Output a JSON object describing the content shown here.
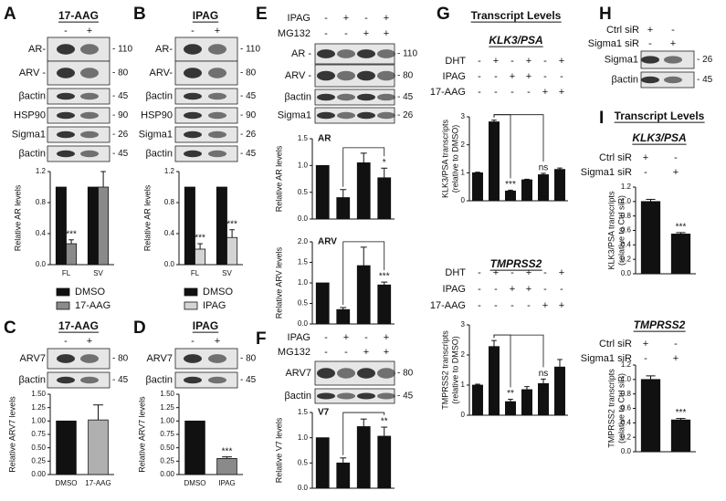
{
  "panels": [
    {
      "letter": "A",
      "title": "17-AAG",
      "conditions": [
        {
          "signs": [
            "-",
            "+"
          ]
        }
      ],
      "blot": [
        {
          "label": "AR-",
          "mw": "- 110"
        },
        {
          "label": "ARV -",
          "mw": "- 80"
        },
        {
          "label": "βactin",
          "mw": "- 45"
        },
        {
          "label": "HSP90",
          "mw": "- 90"
        },
        {
          "label": "Sigma1",
          "mw": "- 26"
        },
        {
          "label": "βactin",
          "mw": "- 45"
        }
      ]
    },
    {
      "letter": "B",
      "title": "IPAG",
      "conditions": [
        {
          "signs": [
            "-",
            "+"
          ]
        }
      ],
      "blot": [
        {
          "label": "AR-",
          "mw": "- 110"
        },
        {
          "label": "ARV-",
          "mw": "- 80"
        },
        {
          "label": "βactin",
          "mw": "- 45"
        },
        {
          "label": "HSP90",
          "mw": "- 90"
        },
        {
          "label": "Sigma1",
          "mw": "- 26"
        },
        {
          "label": "βactin",
          "mw": "- 45"
        }
      ]
    },
    {
      "letter": "C",
      "title": "17-AAG",
      "conditions": [
        {
          "signs": [
            "-",
            "+"
          ]
        }
      ],
      "blot": [
        {
          "label": "ARV7",
          "mw": "- 80"
        },
        {
          "label": "βactin",
          "mw": "- 45"
        }
      ]
    },
    {
      "letter": "D",
      "title": "IPAG",
      "conditions": [
        {
          "signs": [
            "-",
            "+"
          ]
        }
      ],
      "blot": [
        {
          "label": "ARV7",
          "mw": "- 80"
        },
        {
          "label": "βactin",
          "mw": "- 45"
        }
      ]
    },
    {
      "letter": "E",
      "conditions": [
        {
          "name": "IPAG",
          "signs": [
            "-",
            "+",
            "-",
            "+"
          ]
        },
        {
          "name": "MG132",
          "signs": [
            "-",
            "-",
            "+",
            "+"
          ]
        }
      ],
      "blot": [
        {
          "label": "AR -",
          "mw": "- 110"
        },
        {
          "label": "ARV -",
          "mw": "- 80"
        },
        {
          "label": "βactin",
          "mw": "- 45"
        },
        {
          "label": "Sigma1",
          "mw": "- 26"
        }
      ]
    },
    {
      "letter": "F",
      "conditions": [
        {
          "name": "IPAG",
          "signs": [
            "-",
            "+",
            "-",
            "+"
          ]
        },
        {
          "name": "MG132",
          "signs": [
            "-",
            "-",
            "+",
            "+"
          ]
        }
      ],
      "blot": [
        {
          "label": "ARV7",
          "mw": "- 80"
        },
        {
          "label": "βactin",
          "mw": "- 45"
        }
      ]
    },
    {
      "letter": "G",
      "title": "Transcript Levels",
      "sections": [
        {
          "subtitle": "KLK3/PSA",
          "conditions": [
            {
              "name": "DHT",
              "signs": [
                "-",
                "+",
                "-",
                "+",
                "-",
                "+"
              ]
            },
            {
              "name": "IPAG",
              "signs": [
                "-",
                "-",
                "+",
                "+",
                "-",
                "-"
              ]
            },
            {
              "name": "17-AAG",
              "signs": [
                "-",
                "-",
                "-",
                "-",
                "+",
                "+"
              ]
            }
          ]
        },
        {
          "subtitle": "TMPRSS2",
          "conditions": [
            {
              "name": "DHT",
              "signs": [
                "-",
                "+",
                "-",
                "+",
                "-",
                "+"
              ]
            },
            {
              "name": "IPAG",
              "signs": [
                "-",
                "-",
                "+",
                "+",
                "-",
                "-"
              ]
            },
            {
              "name": "17-AAG",
              "signs": [
                "-",
                "-",
                "-",
                "-",
                "+",
                "+"
              ]
            }
          ]
        }
      ]
    },
    {
      "letter": "H",
      "conditions": [
        {
          "name": "Ctrl siR",
          "signs": [
            "+",
            "-"
          ]
        },
        {
          "name": "Sigma1 siR",
          "signs": [
            "-",
            "+"
          ]
        }
      ],
      "blot": [
        {
          "label": "Sigma1",
          "mw": "- 26"
        },
        {
          "label": "βactin",
          "mw": "- 45"
        }
      ]
    },
    {
      "letter": "I",
      "title": "Transcript Levels",
      "sections": [
        {
          "subtitle": "KLK3/PSA",
          "conditions": [
            {
              "name": "Ctrl siR",
              "signs": [
                "+",
                "-"
              ]
            },
            {
              "name": "Sigma1 siR",
              "signs": [
                "-",
                "+"
              ]
            }
          ]
        },
        {
          "subtitle": "TMPRSS2",
          "conditions": [
            {
              "name": "Ctrl siR",
              "signs": [
                "+",
                "-"
              ]
            },
            {
              "name": "Sigma1 siR",
              "signs": [
                "-",
                "+"
              ]
            }
          ]
        }
      ]
    }
  ],
  "chart_data": [
    {
      "type": "bar",
      "ylabel": "Relative AR levels",
      "categories": [
        "FL",
        "SV"
      ],
      "series": [
        {
          "name": "DMSO",
          "color": "#111111",
          "values": [
            1,
            1
          ]
        },
        {
          "name": "17-AAG",
          "color": "#8a8a8a",
          "values": [
            0.27,
            1.0
          ],
          "errors": [
            0.05,
            0.2
          ],
          "annotations": [
            "***",
            null
          ]
        }
      ],
      "ylim": [
        0,
        1.2
      ],
      "yticks": [
        {
          "value": 0,
          "label": "0.0"
        },
        0.4,
        0.8,
        1.2
      ],
      "legend": true
    },
    {
      "type": "bar",
      "ylabel": "Relative AR levels",
      "categories": [
        "FL",
        "SV"
      ],
      "series": [
        {
          "name": "DMSO",
          "color": "#111111",
          "values": [
            1,
            1
          ]
        },
        {
          "name": "IPAG",
          "color": "#d4d4d4",
          "values": [
            0.2,
            0.35
          ],
          "errors": [
            0.07,
            0.1
          ],
          "annotations": [
            "***",
            "***"
          ]
        }
      ],
      "ylim": [
        0,
        1.2
      ],
      "yticks": [
        {
          "value": 0,
          "label": "0.0"
        },
        0.4,
        0.8,
        1.2
      ],
      "legend": true
    },
    {
      "type": "bar",
      "ylabel": "Relative ARV7 levels",
      "categories": [
        "DMSO",
        "17-AAG"
      ],
      "series": [
        {
          "colors": [
            "#111111",
            "#b0b0b0"
          ],
          "values": [
            1,
            1.02
          ],
          "errors": [
            null,
            0.28
          ]
        }
      ],
      "ylim": [
        0,
        1.5
      ],
      "yticks": [
        {
          "value": 0,
          "label": "0.00"
        },
        0.25,
        {
          "value": 0.5,
          "label": "0.50"
        },
        0.75,
        {
          "value": 1,
          "label": "1.00"
        },
        1.25,
        {
          "value": 1.5,
          "label": "1.50"
        }
      ]
    },
    {
      "type": "bar",
      "ylabel": "Relative ARV7 levels",
      "categories": [
        "DMSO",
        "IPAG"
      ],
      "series": [
        {
          "colors": [
            "#111111",
            "#8a8a8a"
          ],
          "values": [
            1,
            0.3
          ],
          "errors": [
            null,
            0.03
          ],
          "annotations": [
            null,
            "***"
          ]
        }
      ],
      "ylim": [
        0,
        1.5
      ],
      "yticks": [
        {
          "value": 0,
          "label": "0.00"
        },
        0.25,
        {
          "value": 0.5,
          "label": "0.50"
        },
        0.75,
        {
          "value": 1,
          "label": "1.00"
        },
        1.25,
        {
          "value": 1.5,
          "label": "1.50"
        }
      ]
    },
    {
      "type": "bar",
      "ylabel": "Relative AR levels",
      "label": "AR",
      "series": [
        {
          "color": "#111111",
          "values": [
            1,
            0.4,
            1.05,
            0.77
          ],
          "errors": [
            null,
            0.15,
            0.18,
            0.18
          ],
          "annotations": [
            null,
            null,
            null,
            "*"
          ]
        }
      ],
      "ylim": [
        0,
        1.5
      ],
      "yticks": [
        {
          "value": 0,
          "label": "0.0"
        },
        0.5,
        {
          "value": 1,
          "label": "1.0"
        },
        1.5
      ]
    },
    {
      "type": "bar",
      "ylabel": "Relative ARV levels",
      "label": "ARV",
      "series": [
        {
          "color": "#111111",
          "values": [
            1,
            0.35,
            1.42,
            0.95
          ],
          "errors": [
            null,
            0.05,
            0.45,
            0.07
          ],
          "annotations": [
            null,
            null,
            null,
            "***"
          ]
        }
      ],
      "ylim": [
        0,
        2
      ],
      "yticks": [
        {
          "value": 0,
          "label": "0.0"
        },
        0.5,
        {
          "value": 1,
          "label": "1.0"
        },
        1.5,
        {
          "value": 2,
          "label": "2.0"
        }
      ]
    },
    {
      "type": "bar",
      "ylabel": "Relative V7 levels",
      "label": "V7",
      "series": [
        {
          "color": "#111111",
          "values": [
            1,
            0.5,
            1.22,
            1.03
          ],
          "errors": [
            null,
            0.1,
            0.15,
            0.18
          ],
          "annotations": [
            null,
            null,
            null,
            "**"
          ]
        }
      ],
      "ylim": [
        0,
        1.5
      ],
      "yticks": [
        {
          "value": 0,
          "label": "0.0"
        },
        0.5,
        {
          "value": 1,
          "label": "1.0"
        },
        1.5
      ]
    },
    {
      "type": "bar",
      "ylabel": [
        "KLK3/PSA transcripts",
        "(relative to DMSO)"
      ],
      "series": [
        {
          "color": "#111111",
          "values": [
            1,
            2.82,
            0.35,
            0.75,
            0.93,
            1.12
          ],
          "errors": [
            0.02,
            0.06,
            0.03,
            0.02,
            0.05,
            0.05
          ],
          "annotations": [
            null,
            null,
            "***",
            null,
            "ns",
            null
          ]
        }
      ],
      "ylim": [
        0,
        3
      ],
      "yticks": [
        0,
        1,
        2,
        3
      ]
    },
    {
      "type": "bar",
      "ylabel": [
        "TMPRSS2 transcripts",
        "(relative to DMSO)"
      ],
      "series": [
        {
          "color": "#111111",
          "values": [
            1,
            2.28,
            0.45,
            0.85,
            1.05,
            1.6
          ],
          "errors": [
            0.03,
            0.2,
            0.08,
            0.1,
            0.15,
            0.25
          ],
          "annotations": [
            null,
            null,
            "**",
            null,
            "ns",
            null
          ]
        }
      ],
      "ylim": [
        0,
        3
      ],
      "yticks": [
        0,
        1,
        2,
        3
      ]
    },
    {
      "type": "bar",
      "ylabel": [
        "KLK3/PSA transcripts",
        "(relative to Ctrl siR)"
      ],
      "series": [
        {
          "color": "#111111",
          "values": [
            1.0,
            0.55
          ],
          "errors": [
            0.03,
            0.02
          ],
          "annotations": [
            null,
            "***"
          ]
        }
      ],
      "ylim": [
        0,
        1.2
      ],
      "yticks": [
        {
          "value": 0,
          "label": "0.0"
        },
        0.2,
        0.4,
        0.6,
        0.8,
        {
          "value": 1,
          "label": "1.0"
        },
        1.2
      ]
    },
    {
      "type": "bar",
      "ylabel": [
        "TMPRSS2 transcripts",
        "(relative to Ctrl siR)"
      ],
      "series": [
        {
          "color": "#111111",
          "values": [
            1.0,
            0.44
          ],
          "errors": [
            0.05,
            0.02
          ],
          "annotations": [
            null,
            "***"
          ]
        }
      ],
      "ylim": [
        0,
        1.2
      ],
      "yticks": [
        {
          "value": 0,
          "label": "0.0"
        },
        0.2,
        0.4,
        0.6,
        0.8,
        {
          "value": 1,
          "label": "1.0"
        },
        1.2
      ]
    }
  ]
}
